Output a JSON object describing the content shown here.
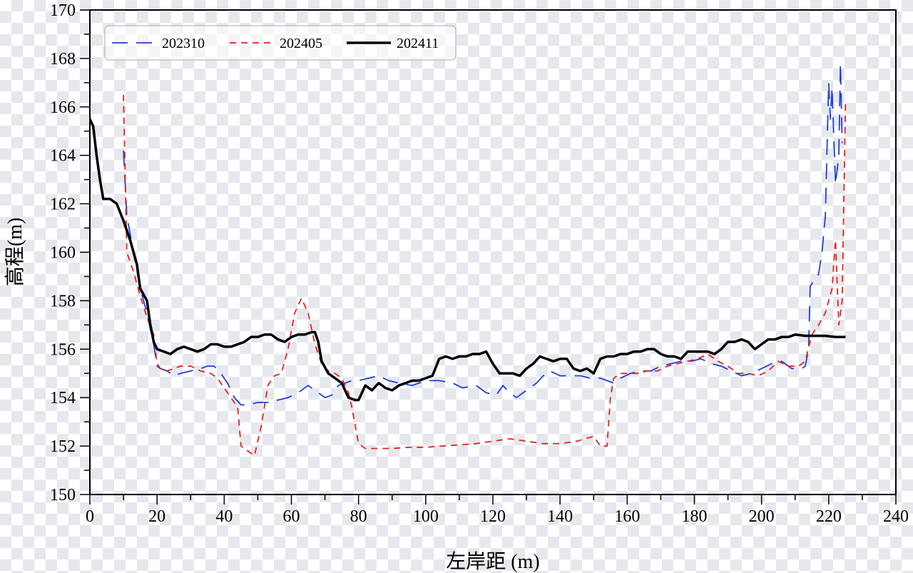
{
  "chart_data": {
    "type": "line",
    "title": "",
    "xlabel": "左岸距 (m)",
    "ylabel": "高程(m)",
    "xlim": [
      0,
      240
    ],
    "ylim": [
      150,
      170
    ],
    "xticks": [
      0,
      20,
      40,
      60,
      80,
      100,
      120,
      140,
      160,
      180,
      200,
      220,
      240
    ],
    "yticks": [
      150,
      152,
      154,
      156,
      158,
      160,
      162,
      164,
      166,
      168,
      170
    ],
    "grid": false,
    "legend_position": "top-left",
    "series": [
      {
        "name": "202310",
        "color": "#1f3fd6",
        "dash": "dashed-long",
        "points": [
          [
            10,
            164.2
          ],
          [
            11,
            161.5
          ],
          [
            13,
            160
          ],
          [
            15,
            158.5
          ],
          [
            17,
            157.5
          ],
          [
            19,
            156.2
          ],
          [
            20,
            155.3
          ],
          [
            21,
            155.2
          ],
          [
            23,
            155.1
          ],
          [
            25,
            154.9
          ],
          [
            27,
            155
          ],
          [
            30,
            155.1
          ],
          [
            33,
            155.2
          ],
          [
            35,
            155.3
          ],
          [
            37,
            155.3
          ],
          [
            39,
            155
          ],
          [
            41,
            154.6
          ],
          [
            43,
            154
          ],
          [
            45,
            153.7
          ],
          [
            47,
            153.7
          ],
          [
            50,
            153.8
          ],
          [
            53,
            153.8
          ],
          [
            56,
            153.9
          ],
          [
            59,
            154
          ],
          [
            62,
            154.2
          ],
          [
            65,
            154.5
          ],
          [
            68,
            154.2
          ],
          [
            70,
            154
          ],
          [
            72,
            154.1
          ],
          [
            74,
            154.5
          ],
          [
            76,
            154.6
          ],
          [
            78,
            154.7
          ],
          [
            80,
            154.7
          ],
          [
            83,
            154.8
          ],
          [
            86,
            154.9
          ],
          [
            89,
            154.7
          ],
          [
            92,
            154.6
          ],
          [
            96,
            154.5
          ],
          [
            100,
            154.7
          ],
          [
            104,
            154.7
          ],
          [
            108,
            154.6
          ],
          [
            111,
            154.4
          ],
          [
            115,
            154.5
          ],
          [
            118,
            154.2
          ],
          [
            121,
            154.1
          ],
          [
            123,
            154.5
          ],
          [
            125,
            154.2
          ],
          [
            127,
            154
          ],
          [
            130,
            154.3
          ],
          [
            133,
            154.6
          ],
          [
            135,
            154.9
          ],
          [
            137,
            155.1
          ],
          [
            140,
            154.9
          ],
          [
            143,
            154.9
          ],
          [
            146,
            154.9
          ],
          [
            149,
            154.8
          ],
          [
            152,
            154.8
          ],
          [
            154,
            154.7
          ],
          [
            156,
            154.6
          ],
          [
            158,
            154.8
          ],
          [
            161,
            155
          ],
          [
            164,
            155.1
          ],
          [
            167,
            155.1
          ],
          [
            170,
            155.3
          ],
          [
            173,
            155.4
          ],
          [
            176,
            155.5
          ],
          [
            179,
            155.5
          ],
          [
            182,
            155.6
          ],
          [
            185,
            155.4
          ],
          [
            188,
            155.3
          ],
          [
            191,
            155.1
          ],
          [
            194,
            154.9
          ],
          [
            197,
            155
          ],
          [
            200,
            155.2
          ],
          [
            203,
            155.4
          ],
          [
            206,
            155.5
          ],
          [
            209,
            155.2
          ],
          [
            212,
            155.2
          ],
          [
            213,
            155.3
          ],
          [
            214,
            156
          ],
          [
            214.5,
            158.6
          ],
          [
            216,
            158.9
          ],
          [
            217,
            159.1
          ],
          [
            218,
            160
          ],
          [
            219,
            161.5
          ],
          [
            220,
            167
          ],
          [
            220.5,
            165.5
          ],
          [
            221,
            166.8
          ],
          [
            222,
            162.8
          ],
          [
            223,
            164
          ],
          [
            223.5,
            167.8
          ],
          [
            224,
            164.5
          ]
        ]
      },
      {
        "name": "202405",
        "color": "#e52020",
        "dash": "dashed-short",
        "points": [
          [
            10,
            166.5
          ],
          [
            11,
            160
          ],
          [
            13,
            159.2
          ],
          [
            15,
            158.2
          ],
          [
            17,
            157.3
          ],
          [
            19,
            156.6
          ],
          [
            20,
            155.4
          ],
          [
            21,
            155.2
          ],
          [
            23,
            155.1
          ],
          [
            25,
            155.2
          ],
          [
            27,
            155.3
          ],
          [
            30,
            155.3
          ],
          [
            33,
            155.1
          ],
          [
            36,
            155
          ],
          [
            38,
            154.8
          ],
          [
            40,
            154.4
          ],
          [
            42,
            154
          ],
          [
            44,
            153.6
          ],
          [
            45,
            152
          ],
          [
            47,
            151.8
          ],
          [
            49,
            151.6
          ],
          [
            51,
            152.8
          ],
          [
            53,
            154.5
          ],
          [
            55,
            154.9
          ],
          [
            57,
            155
          ],
          [
            59,
            156
          ],
          [
            61,
            157.5
          ],
          [
            63,
            158.1
          ],
          [
            65,
            157.5
          ],
          [
            67,
            156.2
          ],
          [
            69,
            155.4
          ],
          [
            71,
            155.1
          ],
          [
            73,
            155
          ],
          [
            75,
            154.8
          ],
          [
            77,
            154.2
          ],
          [
            78,
            153.6
          ],
          [
            80,
            152.1
          ],
          [
            82,
            151.9
          ],
          [
            86,
            151.9
          ],
          [
            90,
            151.9
          ],
          [
            95,
            151.95
          ],
          [
            100,
            151.95
          ],
          [
            105,
            152
          ],
          [
            110,
            152.05
          ],
          [
            115,
            152.1
          ],
          [
            120,
            152.2
          ],
          [
            125,
            152.3
          ],
          [
            130,
            152.2
          ],
          [
            135,
            152.1
          ],
          [
            140,
            152.1
          ],
          [
            145,
            152.2
          ],
          [
            150,
            152.4
          ],
          [
            152,
            152
          ],
          [
            154,
            152
          ],
          [
            155,
            154
          ],
          [
            156,
            154.8
          ],
          [
            158,
            155
          ],
          [
            160,
            155
          ],
          [
            163,
            155
          ],
          [
            166,
            155.1
          ],
          [
            169,
            155.1
          ],
          [
            172,
            155.3
          ],
          [
            175,
            155.4
          ],
          [
            178,
            155.5
          ],
          [
            181,
            155.6
          ],
          [
            184,
            155.8
          ],
          [
            187,
            155.5
          ],
          [
            190,
            155.3
          ],
          [
            193,
            155
          ],
          [
            196,
            155
          ],
          [
            199,
            154.9
          ],
          [
            202,
            155.1
          ],
          [
            205,
            155.5
          ],
          [
            208,
            155.3
          ],
          [
            211,
            155.3
          ],
          [
            213,
            155.5
          ],
          [
            215,
            156.6
          ],
          [
            217,
            157
          ],
          [
            219,
            157.5
          ],
          [
            221,
            158.5
          ],
          [
            222,
            160.5
          ],
          [
            223,
            157
          ],
          [
            224,
            158
          ],
          [
            225,
            166.2
          ]
        ]
      },
      {
        "name": "202411",
        "color": "#000000",
        "dash": "solid",
        "points": [
          [
            0,
            165.5
          ],
          [
            1,
            165.2
          ],
          [
            2,
            164
          ],
          [
            3,
            163
          ],
          [
            4,
            162.2
          ],
          [
            6,
            162.2
          ],
          [
            8,
            162
          ],
          [
            10,
            161.3
          ],
          [
            12,
            160.5
          ],
          [
            14,
            159.5
          ],
          [
            15,
            158.5
          ],
          [
            17,
            158
          ],
          [
            18,
            157
          ],
          [
            19,
            156.3
          ],
          [
            20,
            156
          ],
          [
            22,
            155.9
          ],
          [
            24,
            155.8
          ],
          [
            26,
            156
          ],
          [
            28,
            156.1
          ],
          [
            30,
            156
          ],
          [
            32,
            155.9
          ],
          [
            34,
            156
          ],
          [
            36,
            156.2
          ],
          [
            38,
            156.2
          ],
          [
            40,
            156.1
          ],
          [
            42,
            156.1
          ],
          [
            44,
            156.2
          ],
          [
            46,
            156.3
          ],
          [
            48,
            156.5
          ],
          [
            50,
            156.5
          ],
          [
            52,
            156.6
          ],
          [
            54,
            156.6
          ],
          [
            56,
            156.4
          ],
          [
            58,
            156.3
          ],
          [
            60,
            156.5
          ],
          [
            62,
            156.6
          ],
          [
            64,
            156.6
          ],
          [
            66,
            156.7
          ],
          [
            67,
            156.7
          ],
          [
            68,
            156.3
          ],
          [
            69,
            155.5
          ],
          [
            71,
            155
          ],
          [
            73,
            154.8
          ],
          [
            75,
            154.6
          ],
          [
            77,
            154
          ],
          [
            79,
            153.9
          ],
          [
            80,
            153.9
          ],
          [
            82,
            154.5
          ],
          [
            84,
            154.3
          ],
          [
            86,
            154.6
          ],
          [
            88,
            154.4
          ],
          [
            90,
            154.3
          ],
          [
            92,
            154.5
          ],
          [
            94,
            154.6
          ],
          [
            96,
            154.7
          ],
          [
            98,
            154.7
          ],
          [
            100,
            154.8
          ],
          [
            102,
            154.9
          ],
          [
            104,
            155.6
          ],
          [
            106,
            155.7
          ],
          [
            108,
            155.6
          ],
          [
            110,
            155.7
          ],
          [
            112,
            155.7
          ],
          [
            114,
            155.8
          ],
          [
            116,
            155.8
          ],
          [
            118,
            155.9
          ],
          [
            120,
            155.4
          ],
          [
            122,
            155
          ],
          [
            124,
            155
          ],
          [
            126,
            155
          ],
          [
            128,
            154.9
          ],
          [
            130,
            155.2
          ],
          [
            132,
            155.4
          ],
          [
            134,
            155.7
          ],
          [
            136,
            155.6
          ],
          [
            138,
            155.5
          ],
          [
            140,
            155.6
          ],
          [
            142,
            155.6
          ],
          [
            144,
            155.2
          ],
          [
            146,
            155.1
          ],
          [
            148,
            155.2
          ],
          [
            150,
            155
          ],
          [
            152,
            155.6
          ],
          [
            154,
            155.7
          ],
          [
            156,
            155.7
          ],
          [
            158,
            155.8
          ],
          [
            160,
            155.8
          ],
          [
            162,
            155.9
          ],
          [
            164,
            155.9
          ],
          [
            166,
            156
          ],
          [
            168,
            156
          ],
          [
            170,
            155.8
          ],
          [
            172,
            155.7
          ],
          [
            174,
            155.7
          ],
          [
            176,
            155.6
          ],
          [
            178,
            155.9
          ],
          [
            180,
            155.9
          ],
          [
            182,
            155.9
          ],
          [
            184,
            155.9
          ],
          [
            186,
            155.8
          ],
          [
            188,
            156
          ],
          [
            190,
            156.3
          ],
          [
            192,
            156.3
          ],
          [
            194,
            156.4
          ],
          [
            196,
            156.3
          ],
          [
            198,
            156
          ],
          [
            200,
            156.2
          ],
          [
            202,
            156.4
          ],
          [
            204,
            156.4
          ],
          [
            206,
            156.5
          ],
          [
            208,
            156.5
          ],
          [
            210,
            156.6
          ],
          [
            213,
            156.55
          ],
          [
            216,
            156.55
          ],
          [
            219,
            156.55
          ],
          [
            222,
            156.5
          ],
          [
            225,
            156.5
          ]
        ]
      }
    ]
  }
}
